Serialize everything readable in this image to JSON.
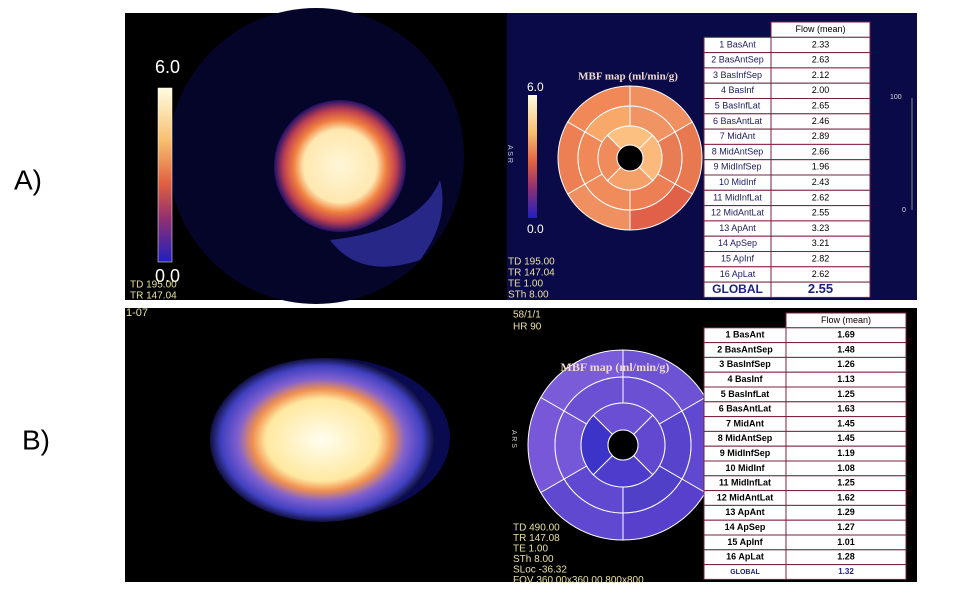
{
  "panels": [
    {
      "label": "A)",
      "scale_max": "6.0",
      "scale_min": "0.0",
      "image_info": [
        "TD 195.00",
        "TR 147.04"
      ],
      "map_title": "MBF map (ml/min/g)",
      "map_scale_max": "6.0",
      "map_scale_min": "0.0",
      "orientation": "A S R",
      "scan_info": [
        "TD 195.00",
        "TR 147.04",
        "TE 1.00",
        "STh 8.00"
      ],
      "side_axis": [
        "100",
        "0"
      ],
      "table": {
        "header": "Flow (mean)",
        "rows": [
          [
            "1 BasAnt",
            "2.33"
          ],
          [
            "2 BasAntSep",
            "2.63"
          ],
          [
            "3 BasInfSep",
            "2.12"
          ],
          [
            "4 BasInf",
            "2.00"
          ],
          [
            "5 BasInfLat",
            "2.65"
          ],
          [
            "6 BasAntLat",
            "2.46"
          ],
          [
            "7 MidAnt",
            "2.89"
          ],
          [
            "8 MidAntSep",
            "2.66"
          ],
          [
            "9 MidInfSep",
            "1.96"
          ],
          [
            "10 MidInf",
            "2.43"
          ],
          [
            "11 MidInfLat",
            "2.62"
          ],
          [
            "12 MidAntLat",
            "2.55"
          ],
          [
            "13 ApAnt",
            "3.23"
          ],
          [
            "14 ApSep",
            "3.21"
          ],
          [
            "15 ApInf",
            "2.82"
          ],
          [
            "16 ApLat",
            "2.62"
          ]
        ],
        "global": [
          "GLOBAL",
          "2.55"
        ]
      }
    },
    {
      "label": "B)",
      "image_info": [
        "1-07"
      ],
      "top_info": [
        "58/1/1",
        "HR 90"
      ],
      "map_title": "MBF map (ml/min/g)",
      "orientation": "A R S",
      "scan_info": [
        "TD 490.00",
        "TR 147.08",
        "TE 1.00",
        "STh 8.00",
        "SLoc -36.32",
        "FOV 360.00x360.00 800x800"
      ],
      "table": {
        "header": "Flow (mean)",
        "rows": [
          [
            "1 BasAnt",
            "1.69"
          ],
          [
            "2 BasAntSep",
            "1.48"
          ],
          [
            "3 BasInfSep",
            "1.26"
          ],
          [
            "4 BasInf",
            "1.13"
          ],
          [
            "5 BasInfLat",
            "1.25"
          ],
          [
            "6 BasAntLat",
            "1.63"
          ],
          [
            "7 MidAnt",
            "1.45"
          ],
          [
            "8 MidAntSep",
            "1.45"
          ],
          [
            "9 MidInfSep",
            "1.19"
          ],
          [
            "10 MidInf",
            "1.08"
          ],
          [
            "11 MidInfLat",
            "1.25"
          ],
          [
            "12 MidAntLat",
            "1.62"
          ],
          [
            "13 ApAnt",
            "1.29"
          ],
          [
            "14 ApSep",
            "1.27"
          ],
          [
            "15 ApInf",
            "1.01"
          ],
          [
            "16 ApLat",
            "1.28"
          ]
        ],
        "global": [
          "GLOBAL",
          "1.32"
        ]
      }
    }
  ]
}
